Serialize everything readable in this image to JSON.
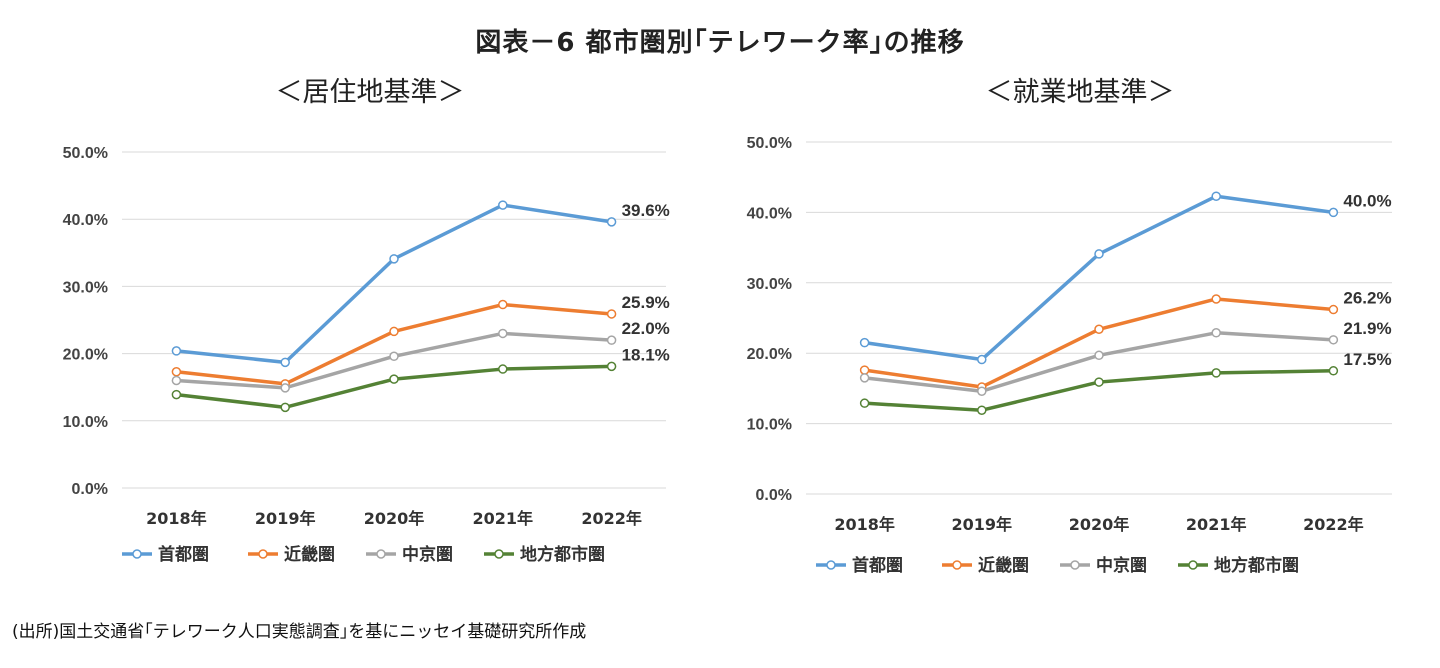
{
  "title": "図表－6 都市圏別｢テレワーク率｣の推移",
  "source": "(出所)国土交通省｢テレワーク人口実態調査｣を基にニッセイ基礎研究所作成",
  "colors": {
    "首都圏": "#5b9bd5",
    "近畿圏": "#ed7d31",
    "中京圏": "#a5a5a5",
    "地方都市圏": "#548235",
    "grid": "#d9d9d9"
  },
  "chart_data": [
    {
      "type": "line",
      "title": "＜居住地基準＞",
      "categories": [
        "2018年",
        "2019年",
        "2020年",
        "2021年",
        "2022年"
      ],
      "ylim": [
        0,
        50
      ],
      "yticks": [
        "0.0%",
        "10.0%",
        "20.0%",
        "30.0%",
        "40.0%",
        "50.0%"
      ],
      "series": [
        {
          "name": "首都圏",
          "values": [
            20.4,
            18.7,
            34.1,
            42.1,
            39.6
          ],
          "end_label": "39.6%"
        },
        {
          "name": "近畿圏",
          "values": [
            17.3,
            15.5,
            23.3,
            27.3,
            25.9
          ],
          "end_label": "25.9%"
        },
        {
          "name": "中京圏",
          "values": [
            16.0,
            14.9,
            19.6,
            23.0,
            22.0
          ],
          "end_label": "22.0%"
        },
        {
          "name": "地方都市圏",
          "values": [
            13.9,
            12.0,
            16.2,
            17.7,
            18.1
          ],
          "end_label": "18.1%"
        }
      ],
      "legend": [
        "首都圏",
        "近畿圏",
        "中京圏",
        "地方都市圏"
      ]
    },
    {
      "type": "line",
      "title": "＜就業地基準＞",
      "categories": [
        "2018年",
        "2019年",
        "2020年",
        "2021年",
        "2022年"
      ],
      "ylim": [
        0,
        50
      ],
      "yticks": [
        "0.0%",
        "10.0%",
        "20.0%",
        "30.0%",
        "40.0%",
        "50.0%"
      ],
      "series": [
        {
          "name": "首都圏",
          "values": [
            21.5,
            19.1,
            34.1,
            42.3,
            40.0
          ],
          "end_label": "40.0%"
        },
        {
          "name": "近畿圏",
          "values": [
            17.6,
            15.2,
            23.4,
            27.7,
            26.2
          ],
          "end_label": "26.2%"
        },
        {
          "name": "中京圏",
          "values": [
            16.5,
            14.6,
            19.7,
            22.9,
            21.9
          ],
          "end_label": "21.9%"
        },
        {
          "name": "地方都市圏",
          "values": [
            12.9,
            11.9,
            15.9,
            17.2,
            17.5
          ],
          "end_label": "17.5%"
        }
      ],
      "legend": [
        "首都圏",
        "近畿圏",
        "中京圏",
        "地方都市圏"
      ]
    }
  ]
}
